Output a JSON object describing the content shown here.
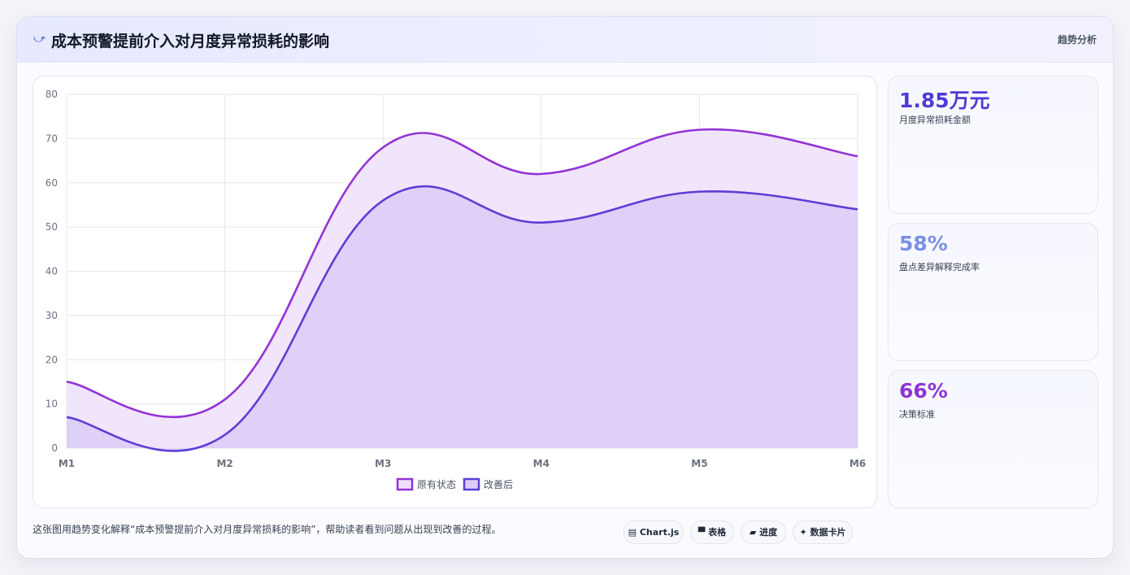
{
  "header": {
    "icon": "trend-icon",
    "title": "成本预警提前介入对月度异常损耗的影响",
    "tag": "趋势分析"
  },
  "stats": [
    {
      "value": "1.85万元",
      "label": "月度异常损耗金额",
      "color": "#4f3bd6"
    },
    {
      "value": "58%",
      "label": "盘点差异解释完成率",
      "color": "#7b8fe6"
    },
    {
      "value": "66%",
      "label": "决策标准",
      "color": "#8e35d6"
    }
  ],
  "footer": {
    "description": "这张图用趋势变化解释“成本预警提前介入对月度异常损耗的影响”，帮助读者看到问题从出现到改善的过程。",
    "pills": [
      {
        "icon": "chart-icon",
        "label": "▤ Chart.js"
      },
      {
        "icon": "table-icon",
        "label": "▀ 表格"
      },
      {
        "icon": "progress-icon",
        "label": "▰ 进度"
      },
      {
        "icon": "card-icon",
        "label": "✦ 数据卡片"
      }
    ]
  },
  "chart_data": {
    "type": "area",
    "categories": [
      "M1",
      "M2",
      "M3",
      "M4",
      "M5",
      "M6"
    ],
    "ylim": [
      0,
      80
    ],
    "yticks": [
      0,
      10,
      20,
      30,
      40,
      50,
      60,
      70,
      80
    ],
    "grid": true,
    "legend": "bottom-center",
    "series": [
      {
        "name": "原有状态",
        "values": [
          15,
          11,
          68,
          62,
          72,
          66
        ],
        "color": "#9333d6",
        "fill": "#efe0fa"
      },
      {
        "name": "改善后",
        "values": [
          7,
          3,
          56,
          51,
          58,
          54
        ],
        "color": "#5b3fd6",
        "fill": "#dccdf6"
      }
    ]
  }
}
